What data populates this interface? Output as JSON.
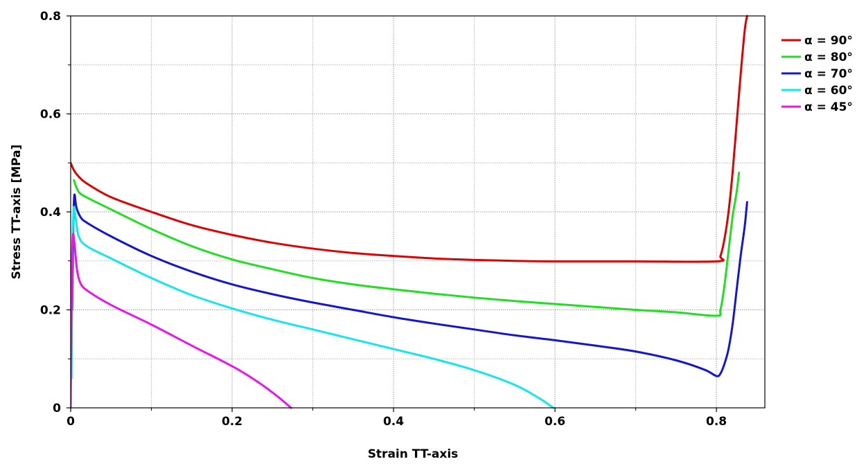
{
  "chart_data": {
    "type": "line",
    "title": "",
    "xlabel": "Strain TT-axis",
    "ylabel": "Stress TT-axis [MPa]",
    "xlim": [
      0,
      0.86
    ],
    "ylim": [
      0,
      0.8
    ],
    "x_ticks": [
      0,
      0.2,
      0.4,
      0.6,
      0.8
    ],
    "x_tick_labels": [
      "0",
      "0.2",
      "0.4",
      "0.6",
      "0.8"
    ],
    "y_ticks": [
      0,
      0.2,
      0.4,
      0.6,
      0.8
    ],
    "y_tick_labels": [
      "0",
      "0.2",
      "0.4",
      "0.6",
      "0.8"
    ],
    "x_minor_ticks": [
      0.1,
      0.3,
      0.5,
      0.7
    ],
    "y_minor_ticks": [
      0.1,
      0.3,
      0.5,
      0.7
    ],
    "grid": true,
    "legend_position": "right",
    "series": [
      {
        "name": "α = 90°",
        "color": "#e00000",
        "points": [
          [
            0,
            0.5
          ],
          [
            0.004,
            0.485
          ],
          [
            0.01,
            0.472
          ],
          [
            0.02,
            0.458
          ],
          [
            0.05,
            0.43
          ],
          [
            0.1,
            0.4
          ],
          [
            0.15,
            0.373
          ],
          [
            0.2,
            0.353
          ],
          [
            0.25,
            0.337
          ],
          [
            0.3,
            0.325
          ],
          [
            0.35,
            0.316
          ],
          [
            0.4,
            0.31
          ],
          [
            0.45,
            0.305
          ],
          [
            0.5,
            0.302
          ],
          [
            0.55,
            0.3
          ],
          [
            0.6,
            0.299
          ],
          [
            0.7,
            0.299
          ],
          [
            0.8,
            0.299
          ],
          [
            0.805,
            0.31
          ],
          [
            0.81,
            0.345
          ],
          [
            0.815,
            0.4
          ],
          [
            0.82,
            0.48
          ],
          [
            0.825,
            0.58
          ],
          [
            0.83,
            0.68
          ],
          [
            0.835,
            0.77
          ],
          [
            0.838,
            0.8
          ]
        ]
      },
      {
        "name": "α = 80°",
        "color": "#1ee01e",
        "points": [
          [
            0.004,
            0.465
          ],
          [
            0.008,
            0.447
          ],
          [
            0.015,
            0.434
          ],
          [
            0.05,
            0.405
          ],
          [
            0.1,
            0.365
          ],
          [
            0.15,
            0.33
          ],
          [
            0.2,
            0.303
          ],
          [
            0.25,
            0.283
          ],
          [
            0.3,
            0.265
          ],
          [
            0.35,
            0.252
          ],
          [
            0.4,
            0.242
          ],
          [
            0.45,
            0.233
          ],
          [
            0.5,
            0.225
          ],
          [
            0.55,
            0.218
          ],
          [
            0.6,
            0.212
          ],
          [
            0.65,
            0.206
          ],
          [
            0.7,
            0.2
          ],
          [
            0.75,
            0.195
          ],
          [
            0.8,
            0.188
          ],
          [
            0.805,
            0.2
          ],
          [
            0.81,
            0.25
          ],
          [
            0.815,
            0.32
          ],
          [
            0.82,
            0.39
          ],
          [
            0.825,
            0.44
          ],
          [
            0.828,
            0.48
          ]
        ]
      },
      {
        "name": "α = 70°",
        "color": "#1414d2",
        "points": [
          [
            0.002,
            0.2
          ],
          [
            0.003,
            0.35
          ],
          [
            0.004,
            0.42
          ],
          [
            0.005,
            0.435
          ],
          [
            0.007,
            0.41
          ],
          [
            0.012,
            0.39
          ],
          [
            0.02,
            0.378
          ],
          [
            0.05,
            0.35
          ],
          [
            0.1,
            0.31
          ],
          [
            0.15,
            0.278
          ],
          [
            0.2,
            0.252
          ],
          [
            0.25,
            0.232
          ],
          [
            0.3,
            0.215
          ],
          [
            0.35,
            0.2
          ],
          [
            0.4,
            0.185
          ],
          [
            0.45,
            0.172
          ],
          [
            0.5,
            0.16
          ],
          [
            0.55,
            0.148
          ],
          [
            0.6,
            0.138
          ],
          [
            0.65,
            0.127
          ],
          [
            0.7,
            0.115
          ],
          [
            0.75,
            0.097
          ],
          [
            0.785,
            0.078
          ],
          [
            0.8,
            0.065
          ],
          [
            0.805,
            0.07
          ],
          [
            0.81,
            0.09
          ],
          [
            0.815,
            0.12
          ],
          [
            0.82,
            0.17
          ],
          [
            0.825,
            0.24
          ],
          [
            0.83,
            0.31
          ],
          [
            0.835,
            0.37
          ],
          [
            0.838,
            0.42
          ]
        ]
      },
      {
        "name": "α = 60°",
        "color": "#14e6f0",
        "points": [
          [
            0.001,
            0.06
          ],
          [
            0.002,
            0.3
          ],
          [
            0.003,
            0.38
          ],
          [
            0.004,
            0.41
          ],
          [
            0.006,
            0.39
          ],
          [
            0.01,
            0.35
          ],
          [
            0.02,
            0.33
          ],
          [
            0.05,
            0.305
          ],
          [
            0.1,
            0.265
          ],
          [
            0.15,
            0.23
          ],
          [
            0.2,
            0.203
          ],
          [
            0.25,
            0.18
          ],
          [
            0.3,
            0.16
          ],
          [
            0.35,
            0.14
          ],
          [
            0.4,
            0.12
          ],
          [
            0.45,
            0.1
          ],
          [
            0.5,
            0.077
          ],
          [
            0.55,
            0.047
          ],
          [
            0.58,
            0.02
          ],
          [
            0.598,
            0
          ]
        ]
      },
      {
        "name": "α = 45°",
        "color": "#ec14ec",
        "points": [
          [
            0,
            0
          ],
          [
            0.001,
            0.2
          ],
          [
            0.002,
            0.32
          ],
          [
            0.003,
            0.355
          ],
          [
            0.005,
            0.33
          ],
          [
            0.008,
            0.28
          ],
          [
            0.012,
            0.255
          ],
          [
            0.02,
            0.24
          ],
          [
            0.05,
            0.21
          ],
          [
            0.1,
            0.17
          ],
          [
            0.15,
            0.127
          ],
          [
            0.2,
            0.085
          ],
          [
            0.23,
            0.055
          ],
          [
            0.255,
            0.025
          ],
          [
            0.273,
            0
          ]
        ]
      }
    ]
  }
}
